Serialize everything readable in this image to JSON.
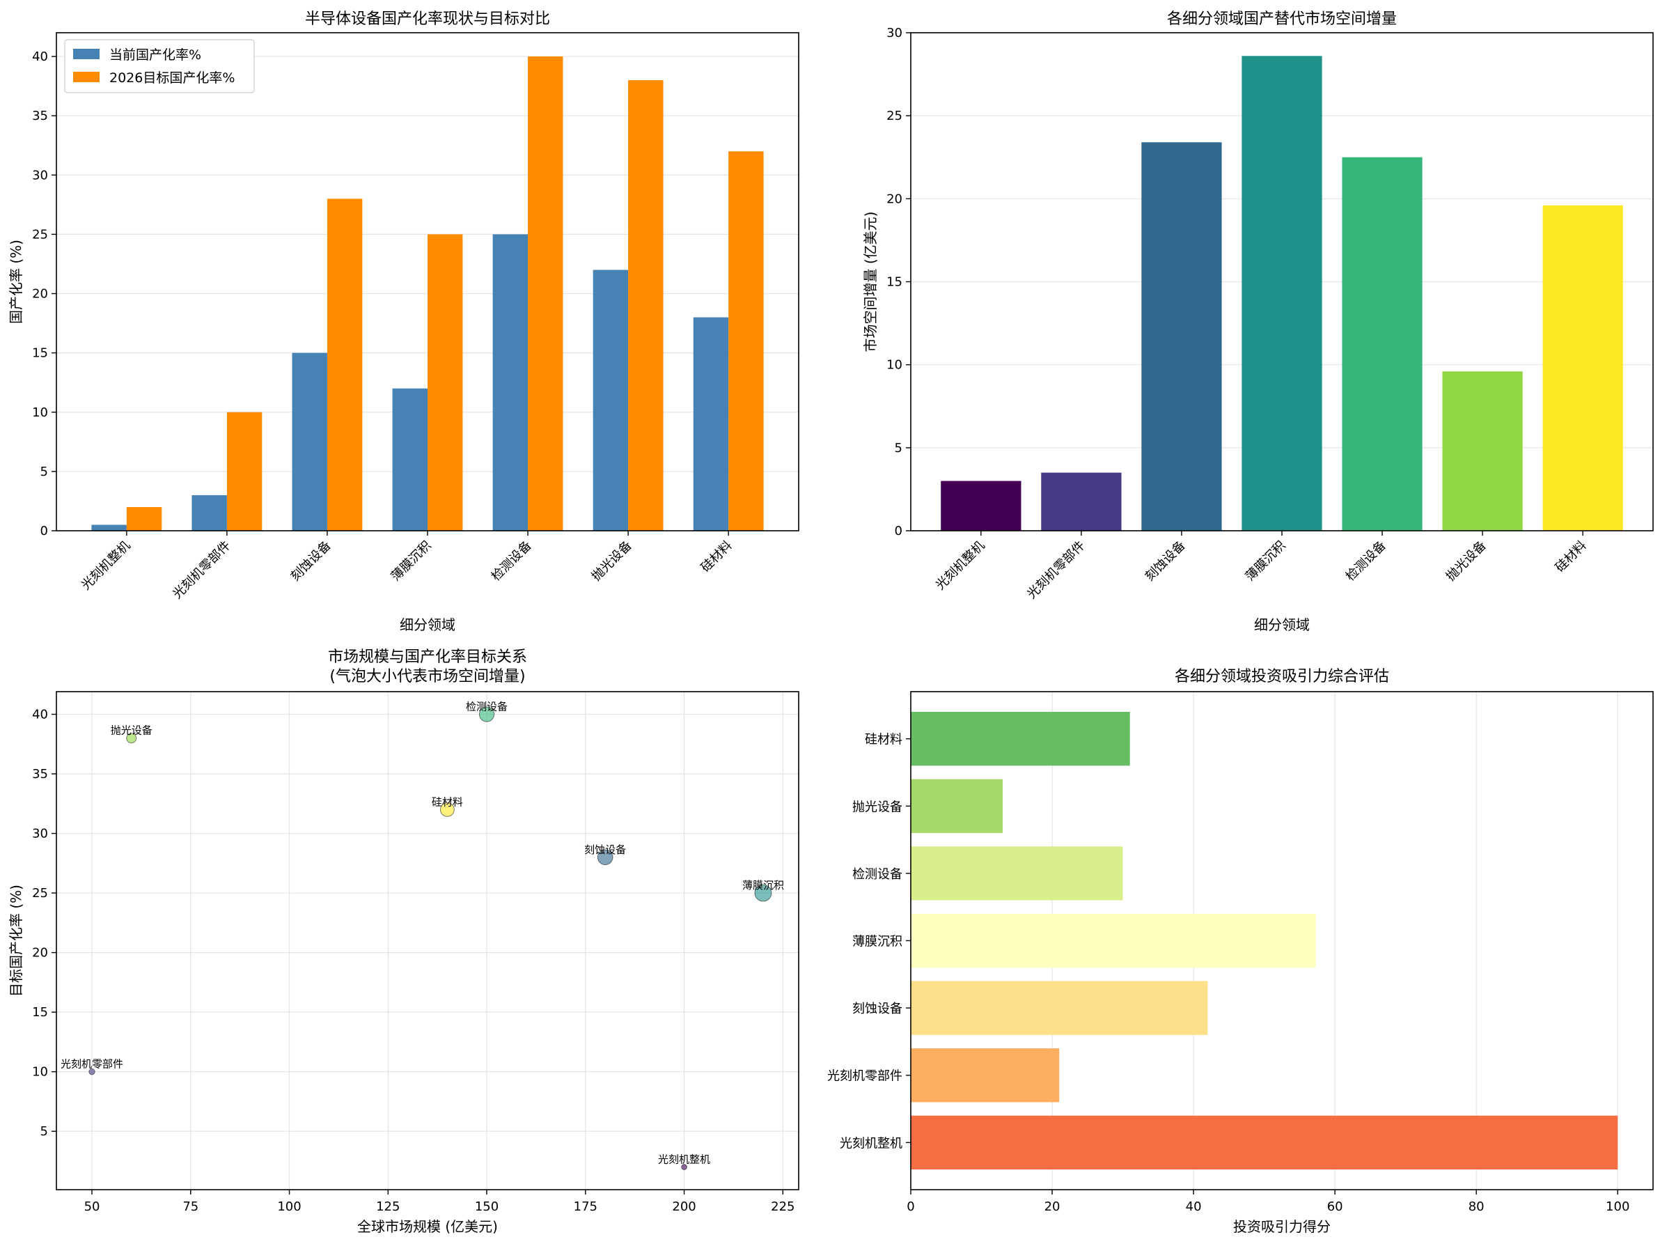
{
  "chart_data": [
    {
      "type": "bar",
      "title": "半导体设备国产化率现状与目标对比",
      "xlabel": "细分领域",
      "ylabel": "国产化率 (%)",
      "categories": [
        "光刻机整机",
        "光刻机零部件",
        "刻蚀设备",
        "薄膜沉积",
        "检测设备",
        "抛光设备",
        "硅材料"
      ],
      "series": [
        {
          "name": "当前国产化率%",
          "values": [
            0.5,
            3,
            15,
            12,
            25,
            22,
            18
          ],
          "color": "#4682b4"
        },
        {
          "name": "2026目标国产化率%",
          "values": [
            2,
            10,
            28,
            25,
            40,
            38,
            32
          ],
          "color": "#ff8c00"
        }
      ],
      "ylim": [
        0,
        42
      ],
      "yticks": [
        0,
        5,
        10,
        15,
        20,
        25,
        30,
        35,
        40
      ],
      "grid": true,
      "legend": "top-left"
    },
    {
      "type": "bar",
      "title": "各细分领域国产替代市场空间增量",
      "xlabel": "细分领域",
      "ylabel": "市场空间增量 (亿美元)",
      "categories": [
        "光刻机整机",
        "光刻机零部件",
        "刻蚀设备",
        "薄膜沉积",
        "检测设备",
        "抛光设备",
        "硅材料"
      ],
      "values": [
        3.0,
        3.5,
        23.4,
        28.6,
        22.5,
        9.6,
        19.6
      ],
      "colors": [
        "#440154",
        "#443983",
        "#31688e",
        "#21918c",
        "#35b779",
        "#90d743",
        "#fde725"
      ],
      "ylim": [
        0,
        30
      ],
      "yticks": [
        0,
        5,
        10,
        15,
        20,
        25,
        30
      ],
      "grid": true
    },
    {
      "type": "scatter",
      "title": "市场规模与国产化率目标关系",
      "subtitle": "(气泡大小代表市场空间增量)",
      "xlabel": "全球市场规模 (亿美元)",
      "ylabel": "目标国产化率 (%)",
      "points": [
        {
          "label": "光刻机整机",
          "x": 200,
          "y": 2,
          "size": 3.0,
          "color": "#440154"
        },
        {
          "label": "光刻机零部件",
          "x": 50,
          "y": 10,
          "size": 3.5,
          "color": "#443983"
        },
        {
          "label": "刻蚀设备",
          "x": 180,
          "y": 28,
          "size": 23.4,
          "color": "#31688e"
        },
        {
          "label": "薄膜沉积",
          "x": 220,
          "y": 25,
          "size": 28.6,
          "color": "#21918c"
        },
        {
          "label": "检测设备",
          "x": 150,
          "y": 40,
          "size": 22.5,
          "color": "#35b779"
        },
        {
          "label": "抛光设备",
          "x": 60,
          "y": 38,
          "size": 9.6,
          "color": "#90d743"
        },
        {
          "label": "硅材料",
          "x": 140,
          "y": 32,
          "size": 19.6,
          "color": "#fde725"
        }
      ],
      "xlim": [
        41,
        229
      ],
      "ylim": [
        0.1,
        41.9
      ],
      "xticks": [
        50,
        75,
        100,
        125,
        150,
        175,
        200,
        225
      ],
      "yticks": [
        5,
        10,
        15,
        20,
        25,
        30,
        35,
        40
      ],
      "grid": true
    },
    {
      "type": "bar",
      "orientation": "horizontal",
      "title": "各细分领域投资吸引力综合评估",
      "xlabel": "投资吸引力得分",
      "ylabel": "",
      "categories": [
        "光刻机整机",
        "光刻机零部件",
        "刻蚀设备",
        "薄膜沉积",
        "检测设备",
        "抛光设备",
        "硅材料"
      ],
      "values": [
        100,
        21,
        42,
        57.3,
        30,
        13,
        31
      ],
      "colors": [
        "#f46d43",
        "#fdae61",
        "#fee08b",
        "#ffffbf",
        "#d9ef8b",
        "#a6d96a",
        "#66bd63"
      ],
      "xlim": [
        0,
        105
      ],
      "xticks": [
        0,
        20,
        40,
        60,
        80,
        100
      ],
      "grid": true
    }
  ]
}
